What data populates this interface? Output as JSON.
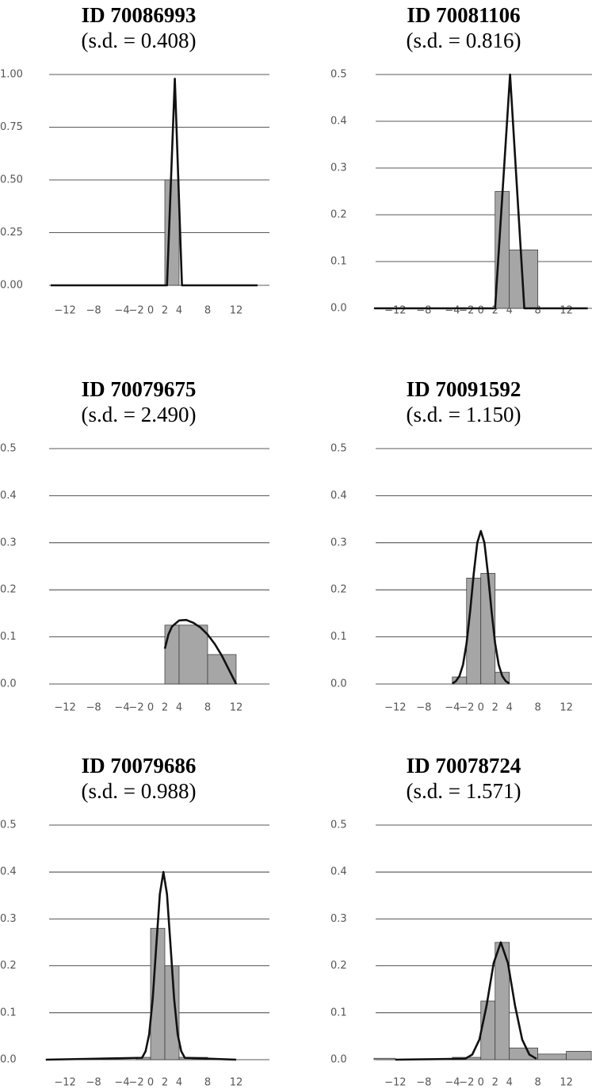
{
  "chart_data": [
    {
      "type": "histogram",
      "title": "ID 70086993",
      "subtitle": "(s.d. = 0.408)",
      "bins": [
        2,
        4
      ],
      "values": [
        0.5
      ],
      "color": "#a6a6a6",
      "density": {
        "x": [
          -14,
          2.3,
          3.4,
          4.4,
          15
        ],
        "values": [
          0,
          0,
          0.98,
          0,
          0
        ],
        "color": "#111111"
      },
      "xlim": [
        -15.56,
        16.67
      ],
      "ylim": [
        0,
        1
      ],
      "xticks": [
        {
          "value": -12,
          "label": "−12"
        },
        {
          "value": -8,
          "label": "−8"
        },
        {
          "value": -4,
          "label": "−4"
        },
        {
          "value": -2,
          "label": "−2"
        },
        0,
        2,
        4,
        8,
        12
      ],
      "yticks": [
        {
          "value": 0,
          "label": "0.00"
        },
        0.25,
        {
          "value": 0.5,
          "label": "0.50"
        },
        0.75,
        {
          "value": 1,
          "label": "1.00"
        }
      ],
      "grid": true
    },
    {
      "type": "histogram",
      "title": "ID 70081106",
      "subtitle": "(s.d. = 0.816)",
      "bins": [
        2,
        4,
        8
      ],
      "values": [
        0.25,
        0.125
      ],
      "color": "#a6a6a6",
      "density": {
        "x": [
          -15,
          2,
          4.1,
          6.1,
          15
        ],
        "values": [
          0,
          0,
          0.5,
          0,
          0
        ],
        "color": "#111111"
      },
      "xlim": [
        -16.1,
        15.6
      ],
      "ylim": [
        0,
        0.5
      ],
      "xticks": [
        {
          "value": -12,
          "label": "−12"
        },
        {
          "value": -8,
          "label": "−8"
        },
        {
          "value": -4,
          "label": "−4"
        },
        {
          "value": -2,
          "label": "−2"
        },
        0,
        2,
        4,
        8,
        12
      ],
      "yticks": [
        {
          "value": 0,
          "label": "0.0"
        },
        0.1,
        0.2,
        0.3,
        0.4,
        0.5
      ],
      "grid": true
    },
    {
      "type": "histogram",
      "title": "ID 70079675",
      "subtitle": "(s.d. = 2.490)",
      "bins": [
        2,
        4,
        8,
        12
      ],
      "values": [
        0.125,
        0.125,
        0.0625
      ],
      "color": "#a6a6a6",
      "density": {
        "x": [
          2,
          2.5,
          3,
          4,
          5,
          6,
          7,
          8,
          9,
          10,
          11,
          12
        ],
        "values": [
          0.075,
          0.105,
          0.122,
          0.135,
          0.136,
          0.13,
          0.12,
          0.105,
          0.085,
          0.06,
          0.03,
          0
        ],
        "color": "#111111"
      },
      "xlim": [
        -15.56,
        16.67
      ],
      "ylim": [
        0,
        0.5
      ],
      "xticks": [
        {
          "value": -12,
          "label": "−12"
        },
        {
          "value": -8,
          "label": "−8"
        },
        {
          "value": -4,
          "label": "−4"
        },
        {
          "value": -2,
          "label": "−2"
        },
        0,
        2,
        4,
        8,
        12
      ],
      "yticks": [
        {
          "value": 0,
          "label": "0.0"
        },
        0.1,
        0.2,
        0.3,
        0.4,
        0.5
      ],
      "grid": true
    },
    {
      "type": "histogram",
      "title": "ID 70091592",
      "subtitle": "(s.d. = 1.150)",
      "bins": [
        -4,
        -2,
        0,
        2,
        4
      ],
      "values": [
        0.015,
        0.225,
        0.235,
        0.025
      ],
      "color": "#a6a6a6",
      "density": {
        "x": [
          -4,
          -3.5,
          -3,
          -2.5,
          -2,
          -1.5,
          -1,
          -0.5,
          0,
          0.5,
          1,
          1.5,
          2,
          2.5,
          3,
          3.5,
          4
        ],
        "values": [
          0.001,
          0.006,
          0.017,
          0.041,
          0.087,
          0.155,
          0.234,
          0.3,
          0.325,
          0.3,
          0.234,
          0.155,
          0.087,
          0.041,
          0.017,
          0.006,
          0.001
        ],
        "color": "#111111"
      },
      "xlim": [
        -16.1,
        15.6
      ],
      "ylim": [
        0,
        0.5
      ],
      "xticks": [
        {
          "value": -12,
          "label": "−12"
        },
        {
          "value": -8,
          "label": "−8"
        },
        {
          "value": -4,
          "label": "−4"
        },
        {
          "value": -2,
          "label": "−2"
        },
        0,
        2,
        4,
        8,
        12
      ],
      "yticks": [
        {
          "value": 0,
          "label": "0.0"
        },
        0.1,
        0.2,
        0.3,
        0.4,
        0.5
      ],
      "grid": true
    },
    {
      "type": "histogram",
      "title": "ID 70079686",
      "subtitle": "(s.d. = 0.988)",
      "bins": [
        -2,
        0,
        2,
        4,
        6,
        8
      ],
      "values": [
        0.005,
        0.28,
        0.2,
        0.005,
        0.005
      ],
      "color": "#a6a6a6",
      "density": {
        "x": [
          -14.7,
          -1.2,
          -0.7,
          -0.2,
          0.3,
          0.8,
          1.3,
          1.8,
          2.3,
          2.8,
          3.3,
          3.8,
          4.3,
          4.8,
          12
        ],
        "values": [
          0,
          0.004,
          0.018,
          0.054,
          0.13,
          0.243,
          0.353,
          0.4,
          0.353,
          0.243,
          0.13,
          0.054,
          0.018,
          0.004,
          0
        ],
        "color": "#111111"
      },
      "xlim": [
        -15.56,
        16.67
      ],
      "ylim": [
        0,
        0.5
      ],
      "xticks": [
        {
          "value": -12,
          "label": "−12"
        },
        {
          "value": -8,
          "label": "−8"
        },
        {
          "value": -4,
          "label": "−4"
        },
        {
          "value": -2,
          "label": "−2"
        },
        0,
        2,
        4,
        8,
        12
      ],
      "yticks": [
        {
          "value": 0,
          "label": "0.0"
        },
        0.1,
        0.2,
        0.3,
        0.4,
        0.5
      ],
      "grid": true
    },
    {
      "type": "histogram",
      "title": "ID 70078724",
      "subtitle": "(s.d. = 1.571)",
      "bins": [
        -15,
        -12,
        -4,
        0,
        2,
        4,
        8,
        12,
        15.5
      ],
      "values": [
        0.003,
        0,
        0.005,
        0.125,
        0.25,
        0.025,
        0.012,
        0.018
      ],
      "color": "#a6a6a6",
      "density": {
        "x": [
          -12,
          -2.2,
          -1.2,
          -0.2,
          0.8,
          1.8,
          2.8,
          3.8,
          4.8,
          5.8,
          6.8,
          7.8
        ],
        "values": [
          0,
          0.002,
          0.011,
          0.043,
          0.115,
          0.206,
          0.25,
          0.206,
          0.115,
          0.043,
          0.011,
          0.002
        ],
        "color": "#111111"
      },
      "xlim": [
        -16.1,
        15.6
      ],
      "ylim": [
        0,
        0.5
      ],
      "xticks": [
        {
          "value": -12,
          "label": "−12"
        },
        {
          "value": -8,
          "label": "−8"
        },
        {
          "value": -4,
          "label": "−4"
        },
        {
          "value": -2,
          "label": "−2"
        },
        0,
        2,
        4,
        8,
        12
      ],
      "yticks": [
        {
          "value": 0,
          "label": "0.0"
        },
        0.1,
        0.2,
        0.3,
        0.4,
        0.5
      ],
      "grid": true
    }
  ]
}
